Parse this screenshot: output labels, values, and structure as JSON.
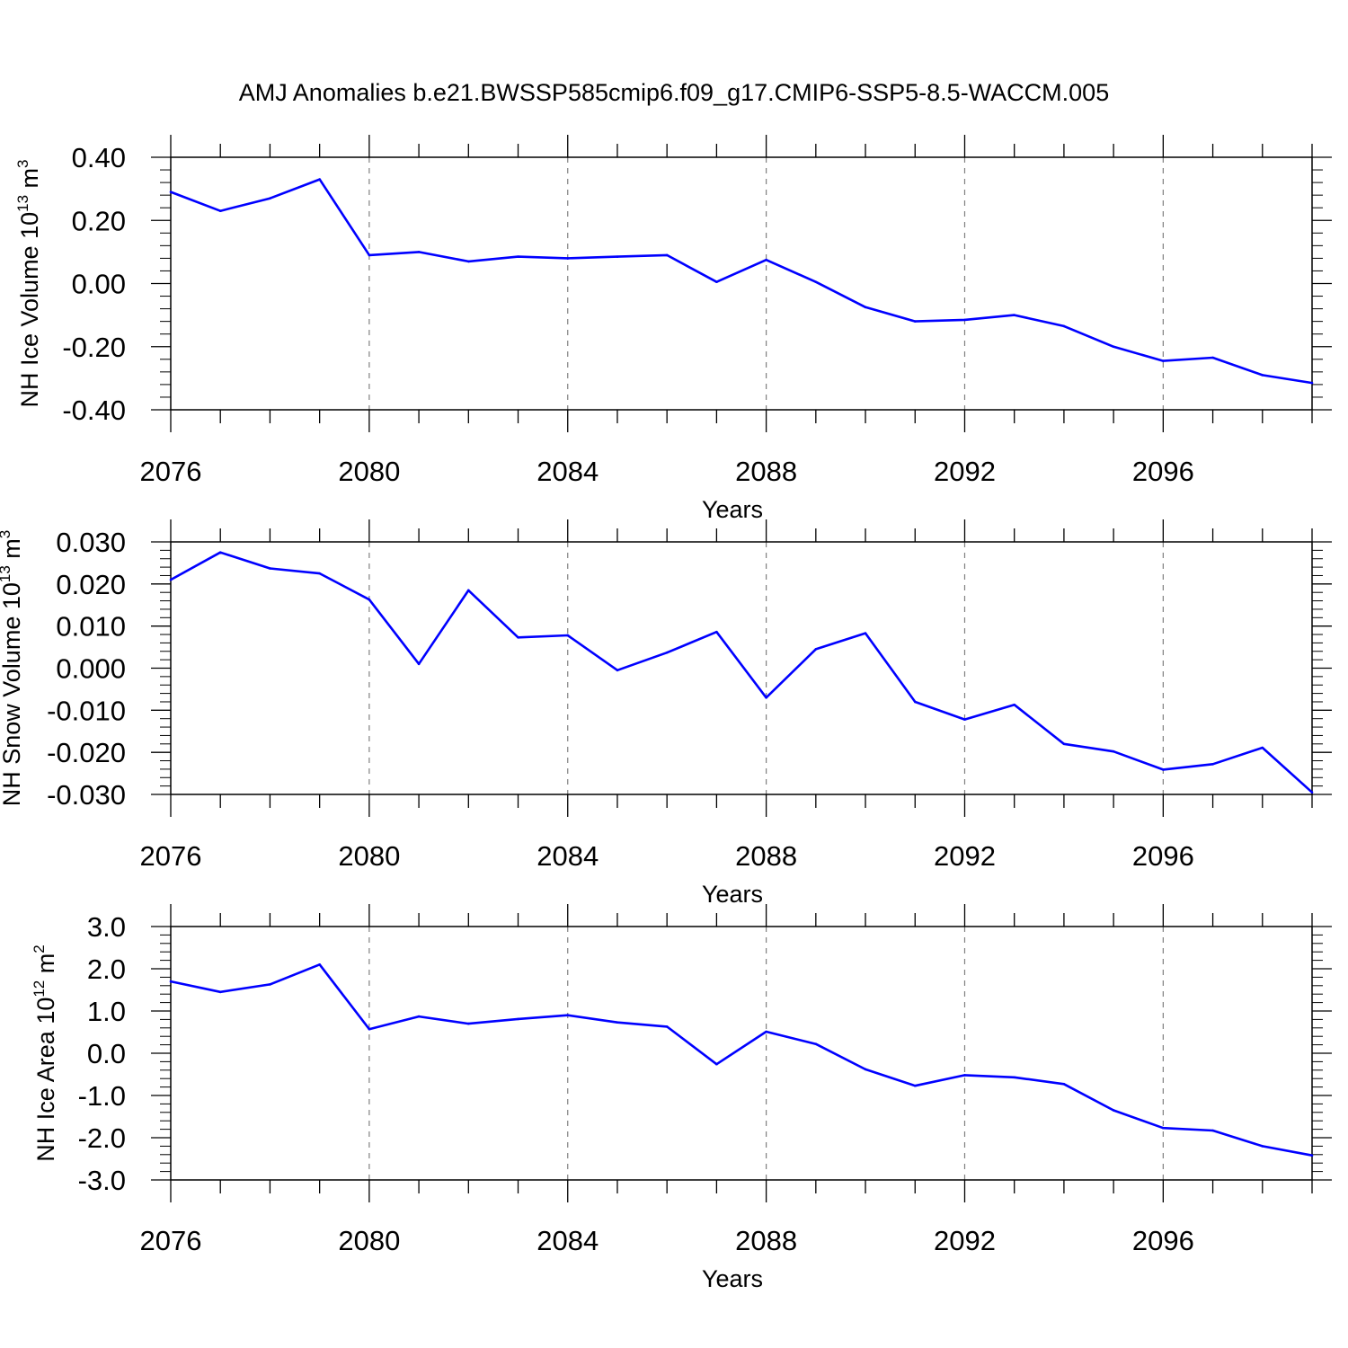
{
  "title": "AMJ Anomalies b.e21.BWSSP585cmip6.f09_g17.CMIP6-SSP5-8.5-WACCM.005",
  "colors": {
    "series": "#0000ff",
    "axis": "#000000",
    "grid": "#808080"
  },
  "chart_data": [
    {
      "type": "line",
      "xlabel": "Years",
      "ylabel": {
        "text": "NH Ice Volume 10",
        "sup": "13",
        "mid": " m",
        "sup2": "3"
      },
      "xlim": [
        2076,
        2099
      ],
      "ylim": [
        -0.4,
        0.4
      ],
      "xticks": [
        2076,
        2080,
        2084,
        2088,
        2092,
        2096
      ],
      "yticks": [
        -0.4,
        -0.2,
        0.0,
        0.2,
        0.4
      ],
      "ytick_labels": [
        "-0.40",
        "-0.20",
        "0.00",
        "0.20",
        "0.40"
      ],
      "grid": "vertical dashed at major x ticks",
      "x": [
        2076,
        2077,
        2078,
        2079,
        2080,
        2081,
        2082,
        2083,
        2084,
        2085,
        2086,
        2087,
        2088,
        2089,
        2090,
        2091,
        2092,
        2093,
        2094,
        2095,
        2096,
        2097,
        2098,
        2099
      ],
      "values": [
        0.29,
        0.23,
        0.27,
        0.33,
        0.09,
        0.1,
        0.07,
        0.085,
        0.08,
        0.085,
        0.09,
        0.005,
        0.075,
        0.005,
        -0.075,
        -0.12,
        -0.115,
        -0.1,
        -0.135,
        -0.2,
        -0.245,
        -0.235,
        -0.29,
        -0.315
      ]
    },
    {
      "type": "line",
      "xlabel": "Years",
      "ylabel": {
        "text": "NH Snow Volume 10",
        "sup": "13",
        "mid": " m",
        "sup2": "3"
      },
      "xlim": [
        2076,
        2099
      ],
      "ylim": [
        -0.03,
        0.03
      ],
      "xticks": [
        2076,
        2080,
        2084,
        2088,
        2092,
        2096
      ],
      "yticks": [
        -0.03,
        -0.02,
        -0.01,
        0.0,
        0.01,
        0.02,
        0.03
      ],
      "ytick_labels": [
        "-0.030",
        "-0.020",
        "-0.010",
        "0.000",
        "0.010",
        "0.020",
        "0.030"
      ],
      "grid": "vertical dashed at major x ticks",
      "x": [
        2076,
        2077,
        2078,
        2079,
        2080,
        2081,
        2082,
        2083,
        2084,
        2085,
        2086,
        2087,
        2088,
        2089,
        2090,
        2091,
        2092,
        2093,
        2094,
        2095,
        2096,
        2097,
        2098,
        2099
      ],
      "values": [
        0.021,
        0.0275,
        0.0237,
        0.0225,
        0.0163,
        0.001,
        0.0185,
        0.0073,
        0.0078,
        -0.0005,
        0.0037,
        0.0086,
        -0.007,
        0.0045,
        0.0083,
        -0.008,
        -0.0122,
        -0.0087,
        -0.018,
        -0.0198,
        -0.0241,
        -0.0228,
        -0.0189,
        -0.0295
      ]
    },
    {
      "type": "line",
      "xlabel": "Years",
      "ylabel": {
        "text": "NH Ice Area 10",
        "sup": "12",
        "mid": " m",
        "sup2": "2"
      },
      "xlim": [
        2076,
        2099
      ],
      "ylim": [
        -3.0,
        3.0
      ],
      "xticks": [
        2076,
        2080,
        2084,
        2088,
        2092,
        2096
      ],
      "yticks": [
        -3.0,
        -2.0,
        -1.0,
        0.0,
        1.0,
        2.0,
        3.0
      ],
      "ytick_labels": [
        "-3.0",
        "-2.0",
        "-1.0",
        "0.0",
        "1.0",
        "2.0",
        "3.0"
      ],
      "grid": "vertical dashed at major x ticks",
      "x": [
        2076,
        2077,
        2078,
        2079,
        2080,
        2081,
        2082,
        2083,
        2084,
        2085,
        2086,
        2087,
        2088,
        2089,
        2090,
        2091,
        2092,
        2093,
        2094,
        2095,
        2096,
        2097,
        2098,
        2099
      ],
      "values": [
        1.7,
        1.45,
        1.63,
        2.1,
        0.57,
        0.87,
        0.7,
        0.81,
        0.9,
        0.73,
        0.63,
        -0.26,
        0.51,
        0.22,
        -0.38,
        -0.77,
        -0.52,
        -0.57,
        -0.73,
        -1.35,
        -1.77,
        -1.83,
        -2.2,
        -2.42
      ]
    }
  ]
}
